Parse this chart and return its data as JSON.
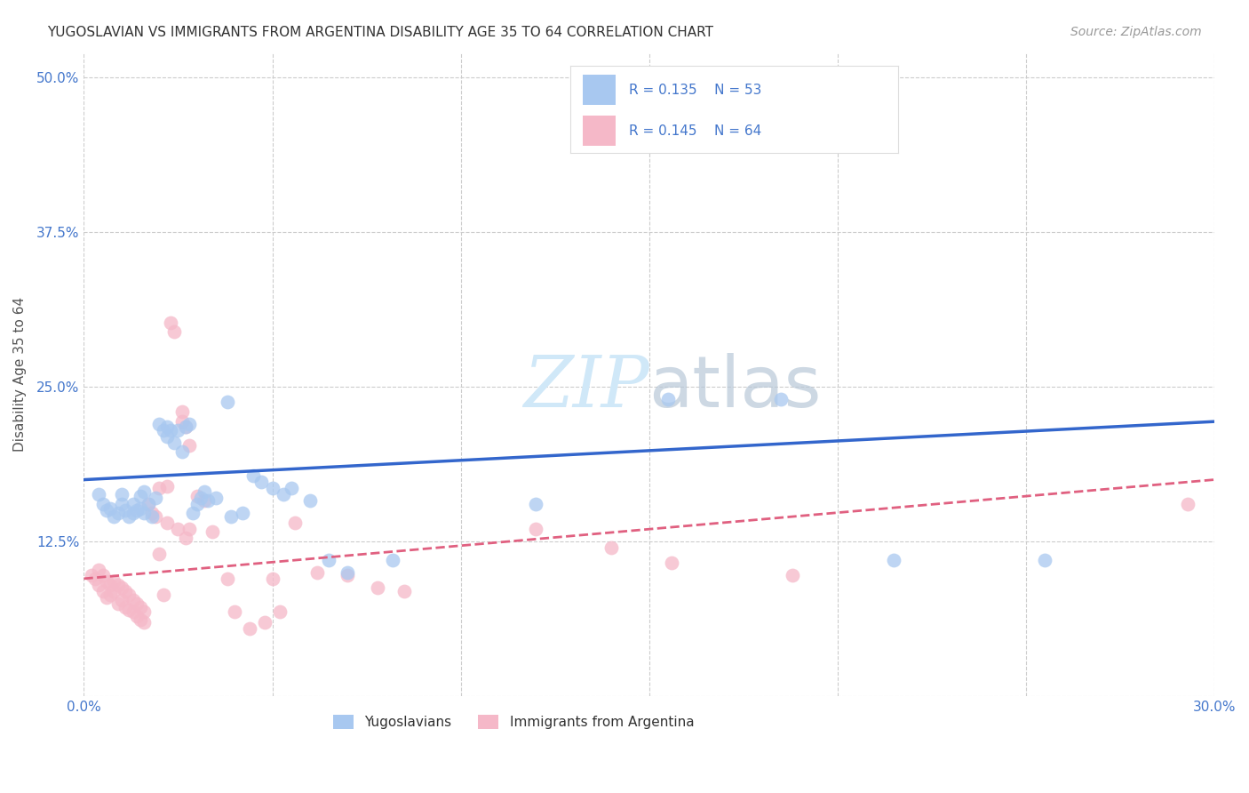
{
  "title": "YUGOSLAVIAN VS IMMIGRANTS FROM ARGENTINA DISABILITY AGE 35 TO 64 CORRELATION CHART",
  "source": "Source: ZipAtlas.com",
  "ylabel": "Disability Age 35 to 64",
  "xlim": [
    0.0,
    0.3
  ],
  "ylim": [
    0.0,
    0.52
  ],
  "xticks": [
    0.0,
    0.05,
    0.1,
    0.15,
    0.2,
    0.25,
    0.3
  ],
  "xticklabels": [
    "0.0%",
    "",
    "",
    "",
    "",
    "",
    "30.0%"
  ],
  "yticks": [
    0.0,
    0.125,
    0.25,
    0.375,
    0.5
  ],
  "yticklabels": [
    "",
    "12.5%",
    "25.0%",
    "37.5%",
    "50.0%"
  ],
  "grid_color": "#cccccc",
  "background_color": "#ffffff",
  "blue_color": "#a8c8f0",
  "pink_color": "#f5b8c8",
  "line_blue": "#3366cc",
  "line_pink": "#e06080",
  "watermark_color": "#d0e8f8",
  "blue_scatter": [
    [
      0.004,
      0.163
    ],
    [
      0.005,
      0.155
    ],
    [
      0.006,
      0.15
    ],
    [
      0.007,
      0.152
    ],
    [
      0.008,
      0.145
    ],
    [
      0.009,
      0.148
    ],
    [
      0.01,
      0.155
    ],
    [
      0.01,
      0.163
    ],
    [
      0.011,
      0.15
    ],
    [
      0.012,
      0.145
    ],
    [
      0.013,
      0.148
    ],
    [
      0.013,
      0.155
    ],
    [
      0.014,
      0.15
    ],
    [
      0.015,
      0.152
    ],
    [
      0.015,
      0.162
    ],
    [
      0.016,
      0.148
    ],
    [
      0.016,
      0.165
    ],
    [
      0.017,
      0.155
    ],
    [
      0.018,
      0.145
    ],
    [
      0.019,
      0.16
    ],
    [
      0.02,
      0.22
    ],
    [
      0.021,
      0.215
    ],
    [
      0.022,
      0.218
    ],
    [
      0.022,
      0.21
    ],
    [
      0.023,
      0.215
    ],
    [
      0.024,
      0.205
    ],
    [
      0.025,
      0.215
    ],
    [
      0.026,
      0.198
    ],
    [
      0.027,
      0.218
    ],
    [
      0.028,
      0.22
    ],
    [
      0.029,
      0.148
    ],
    [
      0.03,
      0.155
    ],
    [
      0.031,
      0.16
    ],
    [
      0.032,
      0.165
    ],
    [
      0.033,
      0.158
    ],
    [
      0.035,
      0.16
    ],
    [
      0.038,
      0.238
    ],
    [
      0.039,
      0.145
    ],
    [
      0.042,
      0.148
    ],
    [
      0.045,
      0.178
    ],
    [
      0.047,
      0.173
    ],
    [
      0.05,
      0.168
    ],
    [
      0.053,
      0.163
    ],
    [
      0.055,
      0.168
    ],
    [
      0.06,
      0.158
    ],
    [
      0.065,
      0.11
    ],
    [
      0.07,
      0.1
    ],
    [
      0.082,
      0.11
    ],
    [
      0.12,
      0.155
    ],
    [
      0.155,
      0.24
    ],
    [
      0.185,
      0.24
    ],
    [
      0.215,
      0.11
    ],
    [
      0.255,
      0.11
    ]
  ],
  "pink_scatter": [
    [
      0.002,
      0.098
    ],
    [
      0.003,
      0.095
    ],
    [
      0.004,
      0.102
    ],
    [
      0.004,
      0.09
    ],
    [
      0.005,
      0.098
    ],
    [
      0.005,
      0.085
    ],
    [
      0.006,
      0.093
    ],
    [
      0.006,
      0.08
    ],
    [
      0.007,
      0.09
    ],
    [
      0.007,
      0.082
    ],
    [
      0.008,
      0.093
    ],
    [
      0.008,
      0.085
    ],
    [
      0.009,
      0.09
    ],
    [
      0.009,
      0.075
    ],
    [
      0.01,
      0.088
    ],
    [
      0.01,
      0.078
    ],
    [
      0.011,
      0.085
    ],
    [
      0.011,
      0.072
    ],
    [
      0.012,
      0.082
    ],
    [
      0.012,
      0.07
    ],
    [
      0.013,
      0.078
    ],
    [
      0.013,
      0.068
    ],
    [
      0.014,
      0.075
    ],
    [
      0.014,
      0.065
    ],
    [
      0.015,
      0.072
    ],
    [
      0.015,
      0.062
    ],
    [
      0.016,
      0.068
    ],
    [
      0.016,
      0.06
    ],
    [
      0.017,
      0.155
    ],
    [
      0.018,
      0.148
    ],
    [
      0.019,
      0.145
    ],
    [
      0.02,
      0.168
    ],
    [
      0.02,
      0.115
    ],
    [
      0.021,
      0.082
    ],
    [
      0.022,
      0.17
    ],
    [
      0.022,
      0.14
    ],
    [
      0.023,
      0.302
    ],
    [
      0.024,
      0.295
    ],
    [
      0.025,
      0.135
    ],
    [
      0.026,
      0.23
    ],
    [
      0.026,
      0.222
    ],
    [
      0.027,
      0.218
    ],
    [
      0.027,
      0.128
    ],
    [
      0.028,
      0.203
    ],
    [
      0.028,
      0.135
    ],
    [
      0.03,
      0.162
    ],
    [
      0.032,
      0.158
    ],
    [
      0.034,
      0.133
    ],
    [
      0.038,
      0.095
    ],
    [
      0.04,
      0.068
    ],
    [
      0.044,
      0.055
    ],
    [
      0.048,
      0.06
    ],
    [
      0.05,
      0.095
    ],
    [
      0.052,
      0.068
    ],
    [
      0.056,
      0.14
    ],
    [
      0.062,
      0.1
    ],
    [
      0.07,
      0.098
    ],
    [
      0.078,
      0.088
    ],
    [
      0.085,
      0.085
    ],
    [
      0.12,
      0.135
    ],
    [
      0.14,
      0.12
    ],
    [
      0.156,
      0.108
    ],
    [
      0.188,
      0.098
    ],
    [
      0.293,
      0.155
    ]
  ]
}
